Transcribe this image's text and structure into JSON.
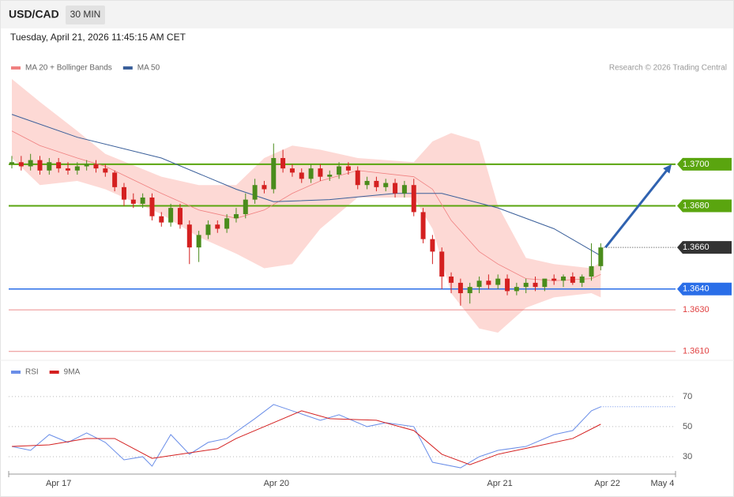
{
  "header": {
    "symbol": "USD/CAD",
    "interval": "30 MIN",
    "timestamp": "Tuesday, April 21, 2026 11:45:15 AM CET",
    "credit": "Research © 2026 Trading Central"
  },
  "chart_data": [
    {
      "type": "candlestick",
      "x": [
        0,
        1,
        2,
        3,
        4,
        5,
        6,
        7,
        8,
        9,
        10,
        11,
        12,
        13,
        14,
        15,
        16,
        17,
        18,
        19,
        20,
        21,
        22,
        23,
        24,
        25,
        26,
        27,
        28,
        29,
        30,
        31,
        32,
        33,
        34,
        35,
        36,
        37,
        38,
        39,
        40,
        41,
        42,
        43,
        44,
        45,
        46,
        47,
        48,
        49,
        50,
        51,
        52,
        53,
        54,
        55,
        56,
        57,
        58,
        59,
        60,
        61,
        62,
        63
      ],
      "open": [
        1.37,
        1.3701,
        1.3699,
        1.3702,
        1.3697,
        1.3701,
        1.3698,
        1.3697,
        1.3699,
        1.37,
        1.3698,
        1.3696,
        1.3689,
        1.3683,
        1.3681,
        1.3684,
        1.3675,
        1.3672,
        1.3679,
        1.3671,
        1.366,
        1.3666,
        1.3671,
        1.3669,
        1.3674,
        1.3676,
        1.3683,
        1.369,
        1.3688,
        1.3703,
        1.3698,
        1.3696,
        1.3693,
        1.3698,
        1.3694,
        1.3695,
        1.3699,
        1.3697,
        1.369,
        1.3692,
        1.3689,
        1.3691,
        1.3686,
        1.369,
        1.3677,
        1.3664,
        1.3658,
        1.3646,
        1.3643,
        1.3638,
        1.3641,
        1.3644,
        1.3642,
        1.3645,
        1.3639,
        1.3641,
        1.3643,
        1.3641,
        1.3645,
        1.3644,
        1.3646,
        1.3643,
        1.3646,
        1.3651
      ],
      "high": [
        1.3704,
        1.3704,
        1.3705,
        1.3704,
        1.3703,
        1.3703,
        1.3701,
        1.3701,
        1.3702,
        1.3702,
        1.37,
        1.3697,
        1.3691,
        1.3686,
        1.3686,
        1.3686,
        1.3677,
        1.3681,
        1.3681,
        1.3673,
        1.3668,
        1.3673,
        1.3673,
        1.3676,
        1.3679,
        1.3686,
        1.3693,
        1.3692,
        1.371,
        1.3707,
        1.37,
        1.3698,
        1.37,
        1.37,
        1.3697,
        1.3701,
        1.3701,
        1.3699,
        1.3694,
        1.3694,
        1.3693,
        1.3693,
        1.3692,
        1.3693,
        1.3679,
        1.3666,
        1.366,
        1.3648,
        1.3645,
        1.3643,
        1.3646,
        1.3647,
        1.3647,
        1.3647,
        1.3643,
        1.3645,
        1.3646,
        1.3644,
        1.3647,
        1.3647,
        1.3648,
        1.3647,
        1.3662,
        1.3662
      ],
      "low": [
        1.3698,
        1.3697,
        1.3697,
        1.3695,
        1.3695,
        1.3696,
        1.3695,
        1.3695,
        1.3697,
        1.3696,
        1.3694,
        1.3687,
        1.368,
        1.3679,
        1.3679,
        1.3673,
        1.367,
        1.367,
        1.3669,
        1.3652,
        1.3653,
        1.3664,
        1.3667,
        1.3667,
        1.3672,
        1.3674,
        1.3681,
        1.3686,
        1.3686,
        1.3696,
        1.3694,
        1.3691,
        1.3691,
        1.3692,
        1.3692,
        1.3693,
        1.3695,
        1.3688,
        1.3688,
        1.3687,
        1.3687,
        1.3684,
        1.3684,
        1.3675,
        1.3662,
        1.3652,
        1.364,
        1.3638,
        1.3632,
        1.3633,
        1.3638,
        1.364,
        1.364,
        1.3637,
        1.3637,
        1.3638,
        1.3639,
        1.3639,
        1.3642,
        1.3641,
        1.3642,
        1.3641,
        1.3644,
        1.3649
      ],
      "close": [
        1.3701,
        1.3699,
        1.3702,
        1.3697,
        1.3701,
        1.3698,
        1.3697,
        1.3699,
        1.37,
        1.3698,
        1.3696,
        1.3689,
        1.3683,
        1.3681,
        1.3684,
        1.3675,
        1.3672,
        1.3679,
        1.3671,
        1.366,
        1.3666,
        1.3671,
        1.3669,
        1.3674,
        1.3676,
        1.3683,
        1.369,
        1.3688,
        1.3703,
        1.3698,
        1.3696,
        1.3693,
        1.3698,
        1.3694,
        1.3695,
        1.3699,
        1.3697,
        1.369,
        1.3692,
        1.3689,
        1.3691,
        1.3686,
        1.369,
        1.3677,
        1.3664,
        1.3658,
        1.3646,
        1.3643,
        1.3638,
        1.3641,
        1.3644,
        1.3642,
        1.3645,
        1.3639,
        1.3641,
        1.3643,
        1.3641,
        1.3645,
        1.3644,
        1.3646,
        1.3643,
        1.3646,
        1.3651,
        1.366
      ],
      "up_color": "#4a8c1c",
      "down_color": "#d42020",
      "xlim": [
        0,
        71
      ],
      "ylim": [
        1.3608,
        1.3741
      ],
      "series": [
        {
          "name": "MA 20 + Bollinger Bands",
          "color": "#f08080",
          "x": [
            0,
            3,
            7,
            10,
            16,
            20,
            24,
            27,
            30,
            33,
            37,
            43,
            45,
            47,
            50,
            52,
            55,
            58,
            62,
            63
          ],
          "values": [
            1.3716,
            1.3709,
            1.3703,
            1.3699,
            1.3686,
            1.3678,
            1.3674,
            1.3678,
            1.3686,
            1.3692,
            1.3697,
            1.3694,
            1.3688,
            1.3673,
            1.3658,
            1.3652,
            1.3645,
            1.3644,
            1.3645,
            1.3647
          ],
          "upper": [
            1.3741,
            1.373,
            1.3716,
            1.3705,
            1.3694,
            1.369,
            1.369,
            1.3703,
            1.3709,
            1.3707,
            1.3703,
            1.3701,
            1.3711,
            1.3715,
            1.3711,
            1.368,
            1.3655,
            1.3652,
            1.365,
            1.3653
          ],
          "lower": [
            1.3703,
            1.369,
            1.3692,
            1.3688,
            1.3676,
            1.3665,
            1.3657,
            1.365,
            1.3652,
            1.3669,
            1.3684,
            1.3684,
            1.3669,
            1.3638,
            1.3621,
            1.3619,
            1.3631,
            1.3636,
            1.3638,
            1.3636
          ],
          "band_color": "#fdd9d5"
        },
        {
          "name": "MA 50",
          "color": "#3a5f9a",
          "x": [
            0,
            7,
            16,
            24,
            28,
            34,
            41,
            46,
            52,
            58,
            63
          ],
          "values": [
            1.3724,
            1.3713,
            1.3703,
            1.3688,
            1.3682,
            1.3683,
            1.3686,
            1.3686,
            1.3679,
            1.3669,
            1.3656
          ]
        }
      ],
      "levels": [
        {
          "value": 1.37,
          "label": "1.3700",
          "color": "#5aa50f",
          "style": "box"
        },
        {
          "value": 1.368,
          "label": "1.3680",
          "color": "#5aa50f",
          "style": "box"
        },
        {
          "value": 1.364,
          "label": "1.3640",
          "color": "#2a6ee8",
          "style": "box"
        },
        {
          "value": 1.363,
          "label": "1.3630",
          "color": "#e04040",
          "style": "text"
        },
        {
          "value": 1.361,
          "label": "1.3610",
          "color": "#e04040",
          "style": "text"
        }
      ],
      "last_price": {
        "value": 1.366,
        "label": "1.3660",
        "color": "#333333"
      },
      "arrow_color": "#2f62b0"
    },
    {
      "type": "line",
      "xlim": [
        0,
        71
      ],
      "ylim": [
        20,
        92
      ],
      "yticks": [
        30,
        50,
        70
      ],
      "xticks": [
        {
          "value": 5,
          "label": "Apr 17"
        },
        {
          "value": 28.3,
          "label": "Apr 20"
        },
        {
          "value": 52.2,
          "label": "Apr 21"
        },
        {
          "value": 63.7,
          "label": "Apr 22"
        },
        {
          "value": 69.6,
          "label": "May 4"
        }
      ],
      "series": [
        {
          "name": "RSI",
          "color": "#6a8ee8",
          "x": [
            0,
            2,
            4,
            6,
            8,
            10,
            12,
            14,
            15,
            17,
            19,
            21,
            23,
            26,
            28,
            30,
            33,
            35,
            38,
            40,
            43,
            45,
            48,
            50,
            52,
            55,
            58,
            60,
            62,
            63
          ],
          "values": [
            36.8,
            34.2,
            44.7,
            39.5,
            45.8,
            39.5,
            27.9,
            30,
            23.7,
            44.7,
            31.6,
            39.5,
            42.1,
            55.3,
            64.7,
            60.5,
            54.2,
            57.9,
            50,
            52.6,
            50,
            26.3,
            22.6,
            30,
            34.2,
            36.8,
            44.7,
            47.4,
            60.5,
            63.2
          ]
        },
        {
          "name": "9MA",
          "color": "#d42020",
          "x": [
            0,
            4,
            8,
            11,
            15,
            18,
            22,
            24,
            28,
            31,
            34,
            39,
            43,
            46,
            49,
            52,
            56,
            60,
            63
          ],
          "values": [
            36.8,
            37.9,
            42.1,
            42.1,
            28.9,
            31.6,
            35.3,
            42.1,
            52.6,
            60.5,
            55.3,
            54.2,
            47.4,
            31.6,
            24.7,
            31.6,
            36.8,
            42.1,
            51.6
          ]
        }
      ]
    }
  ]
}
